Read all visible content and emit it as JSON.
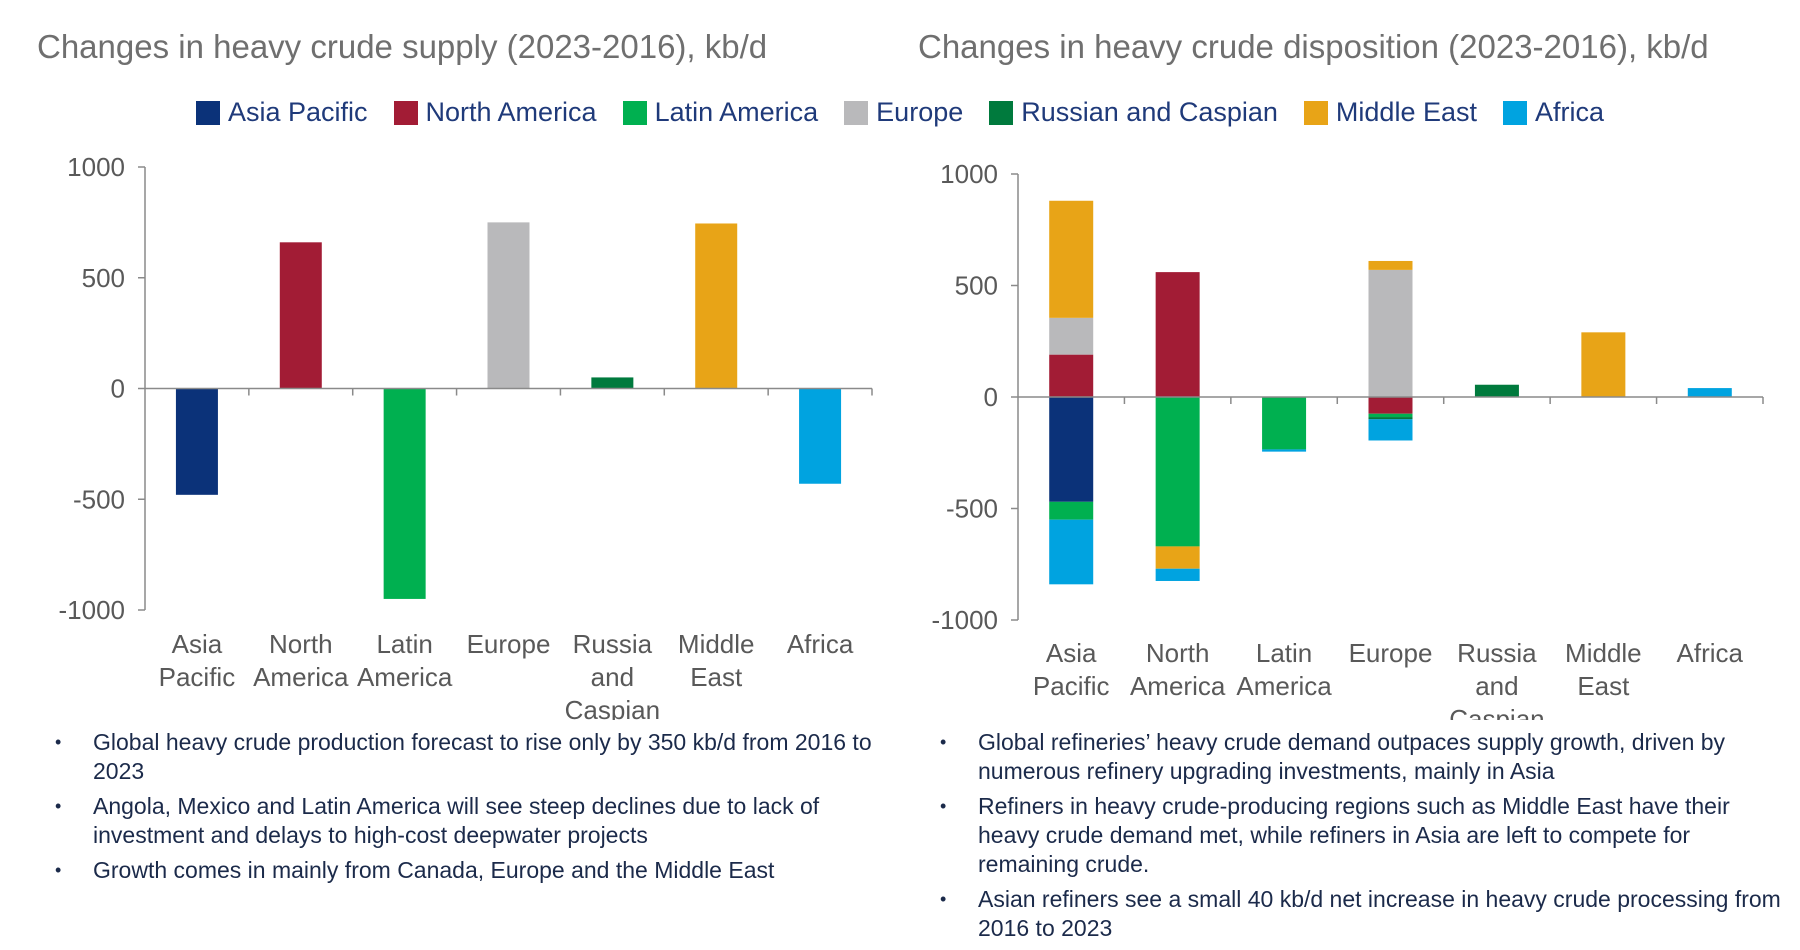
{
  "titles": {
    "left": "Changes in heavy crude supply (2023-2016), kb/d",
    "right": "Changes in heavy crude disposition (2023-2016), kb/d"
  },
  "colors": {
    "Asia Pacific": "#0b3279",
    "North America": "#a21c35",
    "Latin America": "#00b050",
    "Europe": "#b9b9bb",
    "Russian and Caspian": "#007a3d",
    "Middle East": "#e8a417",
    "Africa": "#00a3e0"
  },
  "legend": [
    {
      "label": "Asia Pacific",
      "color": "#0b3279"
    },
    {
      "label": "North America",
      "color": "#a21c35"
    },
    {
      "label": "Latin America",
      "color": "#00b050"
    },
    {
      "label": "Europe",
      "color": "#b9b9bb"
    },
    {
      "label": "Russian and Caspian",
      "color": "#007a3d"
    },
    {
      "label": "Middle East",
      "color": "#e8a417"
    },
    {
      "label": "Africa",
      "color": "#00a3e0"
    }
  ],
  "chart_data": [
    {
      "type": "bar",
      "title": "Changes in heavy crude supply (2023-2016), kb/d",
      "categories": [
        [
          "Asia",
          "Pacific"
        ],
        [
          "North",
          "America"
        ],
        [
          "Latin",
          "America"
        ],
        [
          "Europe"
        ],
        [
          "Russia",
          "and",
          "Caspian"
        ],
        [
          "Middle",
          "East"
        ],
        [
          "Africa"
        ]
      ],
      "values": [
        -480,
        660,
        -950,
        750,
        50,
        745,
        -430
      ],
      "bar_colors": [
        "#0b3279",
        "#a21c35",
        "#00b050",
        "#b9b9bb",
        "#007a3d",
        "#e8a417",
        "#00a3e0"
      ],
      "ylim": [
        -1000,
        1000
      ],
      "yticks": [
        1000,
        500,
        0,
        -500,
        -1000
      ],
      "xlabel": "",
      "ylabel": ""
    },
    {
      "type": "bar",
      "stacked": true,
      "title": "Changes in heavy crude disposition (2023-2016), kb/d",
      "categories": [
        [
          "Asia",
          "Pacific"
        ],
        [
          "North",
          "America"
        ],
        [
          "Latin",
          "America"
        ],
        [
          "Europe"
        ],
        [
          "Russia",
          "and",
          "Caspian"
        ],
        [
          "Middle",
          "East"
        ],
        [
          "Africa"
        ]
      ],
      "series": [
        {
          "name": "Asia Pacific",
          "values": [
            -470,
            0,
            0,
            0,
            0,
            0,
            0
          ]
        },
        {
          "name": "North America",
          "values": [
            190,
            560,
            0,
            -75,
            0,
            0,
            0
          ]
        },
        {
          "name": "Latin America",
          "values": [
            -80,
            -670,
            -235,
            -15,
            0,
            0,
            0
          ]
        },
        {
          "name": "Europe",
          "values": [
            165,
            0,
            0,
            570,
            0,
            0,
            0
          ]
        },
        {
          "name": "Russian and Caspian",
          "values": [
            0,
            0,
            0,
            -10,
            55,
            0,
            0
          ]
        },
        {
          "name": "Middle East",
          "values": [
            525,
            -100,
            0,
            40,
            0,
            290,
            0
          ]
        },
        {
          "name": "Africa",
          "values": [
            -290,
            -55,
            -10,
            -95,
            0,
            0,
            40
          ]
        }
      ],
      "ylim": [
        -1000,
        1000
      ],
      "yticks": [
        1000,
        500,
        0,
        -500,
        -1000
      ],
      "xlabel": "",
      "ylabel": ""
    }
  ],
  "bullets": {
    "left": [
      "Global heavy crude production forecast to rise only by 350 kb/d from 2016 to 2023",
      "Angola, Mexico and Latin America will see steep declines due to lack of investment and delays to high-cost deepwater projects",
      "Growth comes in mainly from Canada, Europe and the Middle East"
    ],
    "right": [
      "Global refineries’ heavy crude demand outpaces supply growth, driven by numerous refinery upgrading investments, mainly in Asia",
      "Refiners in heavy crude-producing regions such as Middle East have their heavy crude demand met, while refiners in Asia are left to compete for remaining crude.",
      "Asian refiners see a small 40 kb/d net increase in heavy crude processing from 2016 to 2023"
    ]
  }
}
